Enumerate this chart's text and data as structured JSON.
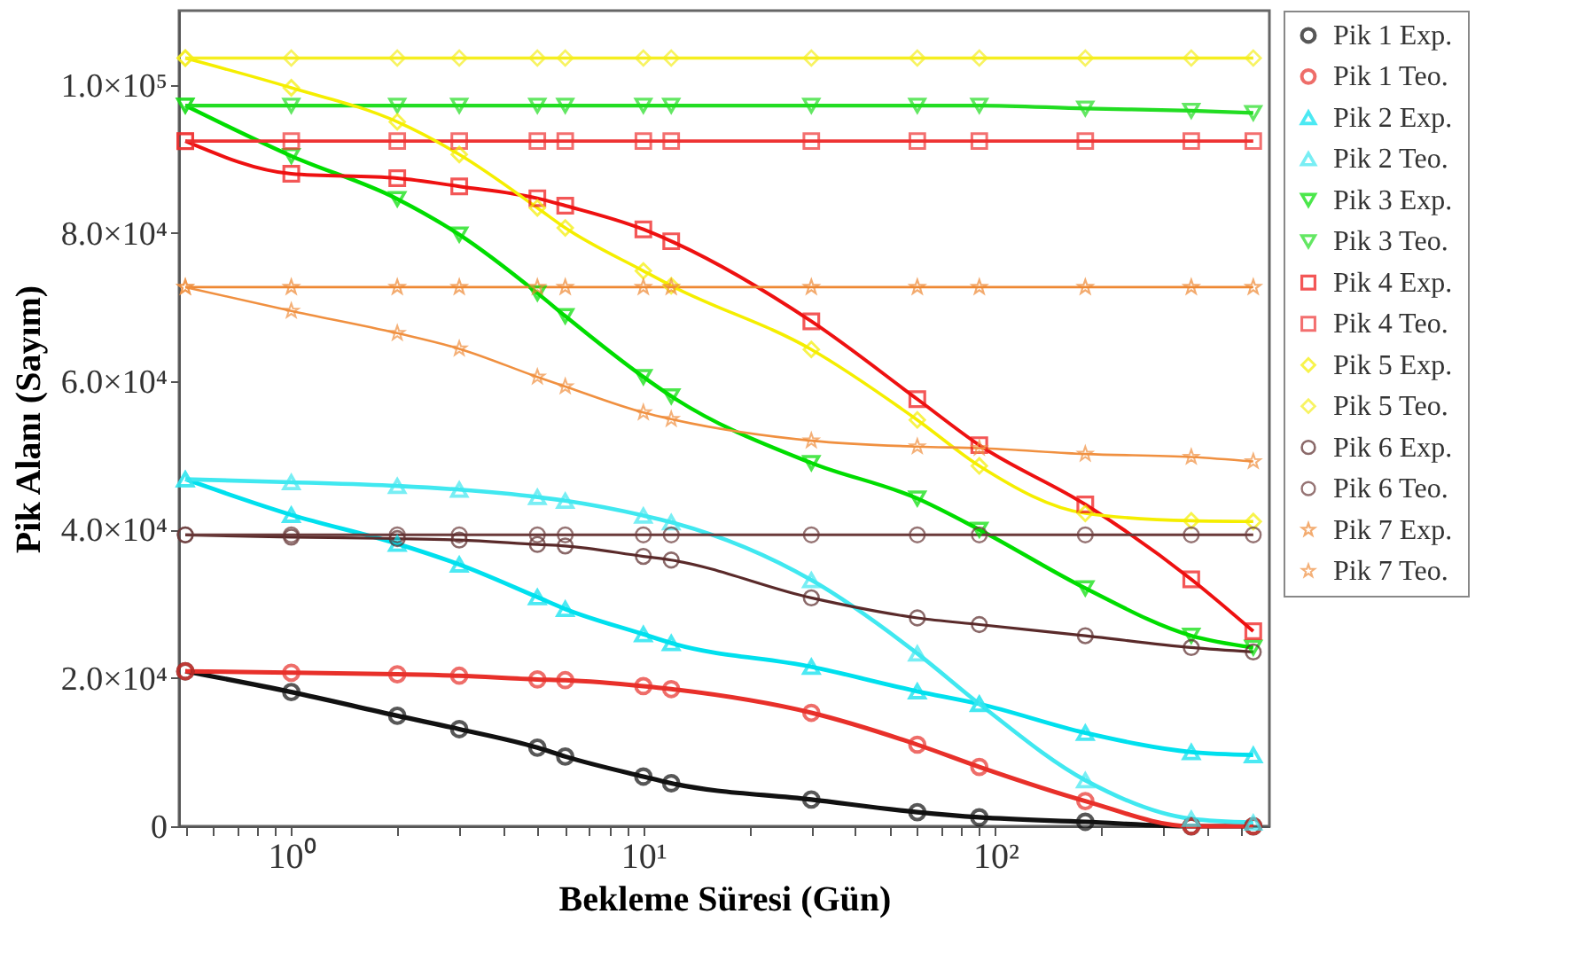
{
  "chart_data": {
    "type": "line",
    "xlabel": "Bekleme Süresi (Gün)",
    "ylabel": "Pik Alanı (Sayım)",
    "log": "x",
    "grid": false,
    "legend": "top right",
    "line_style": "solid",
    "xlim": [
      0.48,
      600
    ],
    "ylim": [
      0,
      110000
    ],
    "xticks": [
      {
        "value": 0.5,
        "label": null
      },
      {
        "value": 0.6,
        "label": null
      },
      {
        "value": 0.7,
        "label": null
      },
      {
        "value": 0.8,
        "label": null
      },
      {
        "value": 0.9,
        "label": null
      },
      {
        "value": 1,
        "label": "10⁰"
      },
      {
        "value": 2,
        "label": null
      },
      {
        "value": 3,
        "label": null
      },
      {
        "value": 4,
        "label": null
      },
      {
        "value": 5,
        "label": null
      },
      {
        "value": 6,
        "label": null
      },
      {
        "value": 7,
        "label": null
      },
      {
        "value": 8,
        "label": null
      },
      {
        "value": 9,
        "label": null
      },
      {
        "value": 10,
        "label": "10¹"
      },
      {
        "value": 20,
        "label": null
      },
      {
        "value": 30,
        "label": null
      },
      {
        "value": 40,
        "label": null
      },
      {
        "value": 50,
        "label": null
      },
      {
        "value": 60,
        "label": null
      },
      {
        "value": 70,
        "label": null
      },
      {
        "value": 80,
        "label": null
      },
      {
        "value": 90,
        "label": null
      },
      {
        "value": 100,
        "label": "10²"
      },
      {
        "value": 200,
        "label": null
      },
      {
        "value": 300,
        "label": null
      },
      {
        "value": 400,
        "label": null
      },
      {
        "value": 500,
        "label": null
      }
    ],
    "yticks": [
      0,
      {
        "value": 20000,
        "label": "2.0×10⁴"
      },
      {
        "value": 40000,
        "label": "4.0×10⁴"
      },
      {
        "value": 60000,
        "label": "6.0×10⁴"
      },
      {
        "value": 80000,
        "label": "8.0×10⁴"
      },
      {
        "value": 100000,
        "label": "1.0×10⁵"
      }
    ],
    "x": [
      0.5,
      1,
      2,
      3,
      5,
      6,
      10,
      12,
      30,
      60,
      90,
      180,
      360,
      540
    ],
    "series": [
      {
        "name": "Pik 1 Exp.",
        "color": "#111111",
        "marker": "circle",
        "values": [
          20900,
          18100,
          14900,
          13100,
          10600,
          9400,
          6700,
          5800,
          3600,
          1900,
          1200,
          600,
          0,
          0
        ]
      },
      {
        "name": "Pik 1 Teo.",
        "color": "#e8302a",
        "marker": "circle",
        "values": [
          20900,
          20700,
          20500,
          20300,
          19800,
          19700,
          18900,
          18500,
          15300,
          11000,
          8000,
          3400,
          0,
          0
        ]
      },
      {
        "name": "Pik 2 Exp.",
        "color": "#00e0ee",
        "marker": "triangle",
        "values": [
          46800,
          42000,
          38100,
          35300,
          30900,
          29300,
          25900,
          24700,
          21500,
          18200,
          16500,
          12600,
          10000,
          9600
        ]
      },
      {
        "name": "Pik 2 Teo.",
        "color": "#40e8f0",
        "marker": "triangle",
        "values": [
          46800,
          46400,
          45900,
          45400,
          44400,
          43900,
          41900,
          41000,
          33200,
          23300,
          16500,
          6200,
          1000,
          500
        ]
      },
      {
        "name": "Pik 3 Exp.",
        "color": "#00dd00",
        "marker": "triangle-down",
        "values": [
          97200,
          90400,
          84600,
          79800,
          71900,
          68800,
          60600,
          58000,
          49000,
          44200,
          40000,
          32100,
          25700,
          24100
        ]
      },
      {
        "name": "Pik 3 Teo.",
        "color": "#22dd22",
        "marker": "triangle-down",
        "values": [
          97200,
          97200,
          97200,
          97200,
          97200,
          97200,
          97200,
          97200,
          97200,
          97200,
          97200,
          96800,
          96500,
          96200
        ]
      },
      {
        "name": "Pik 4 Exp.",
        "color": "#ee1111",
        "marker": "square",
        "values": [
          92400,
          88000,
          87400,
          86300,
          84700,
          83700,
          80500,
          78900,
          68100,
          57600,
          51400,
          43400,
          33300,
          26300
        ]
      },
      {
        "name": "Pik 4 Teo.",
        "color": "#ee3333",
        "marker": "square",
        "values": [
          92400,
          92400,
          92400,
          92400,
          92400,
          92400,
          92400,
          92400,
          92400,
          92400,
          92400,
          92400,
          92400,
          92400
        ]
      },
      {
        "name": "Pik 5 Exp.",
        "color": "#f5ee00",
        "marker": "diamond",
        "values": [
          103600,
          99600,
          95000,
          90600,
          83400,
          80700,
          74900,
          72900,
          64300,
          54800,
          48600,
          42200,
          41200,
          41100
        ]
      },
      {
        "name": "Pik 5 Teo.",
        "color": "#f5ee20",
        "marker": "diamond",
        "values": [
          103600,
          103600,
          103600,
          103600,
          103600,
          103600,
          103600,
          103600,
          103600,
          103600,
          103600,
          103600,
          103600,
          103600
        ]
      },
      {
        "name": "Pik 6 Exp.",
        "color": "#5a2a2a",
        "marker": "circle",
        "values": [
          39300,
          39000,
          38800,
          38600,
          38000,
          37800,
          36400,
          35900,
          30800,
          28100,
          27200,
          25700,
          24100,
          23500
        ]
      },
      {
        "name": "Pik 6 Teo.",
        "color": "#6a3a3a",
        "marker": "circle",
        "values": [
          39300,
          39300,
          39300,
          39300,
          39300,
          39300,
          39300,
          39300,
          39300,
          39300,
          39300,
          39300,
          39300,
          39300
        ]
      },
      {
        "name": "Pik 7 Exp.",
        "color": "#ee8833",
        "marker": "star",
        "values": [
          72700,
          72700,
          72700,
          72700,
          72700,
          72700,
          72700,
          72700,
          72700,
          72700,
          72700,
          72700,
          72700,
          72700
        ]
      },
      {
        "name": "Pik 7 Teo.",
        "color": "#f09040",
        "marker": "star",
        "values": [
          72700,
          69500,
          66500,
          64400,
          60600,
          59300,
          55800,
          54900,
          52000,
          51200,
          51000,
          50200,
          49800,
          49200
        ]
      }
    ]
  }
}
